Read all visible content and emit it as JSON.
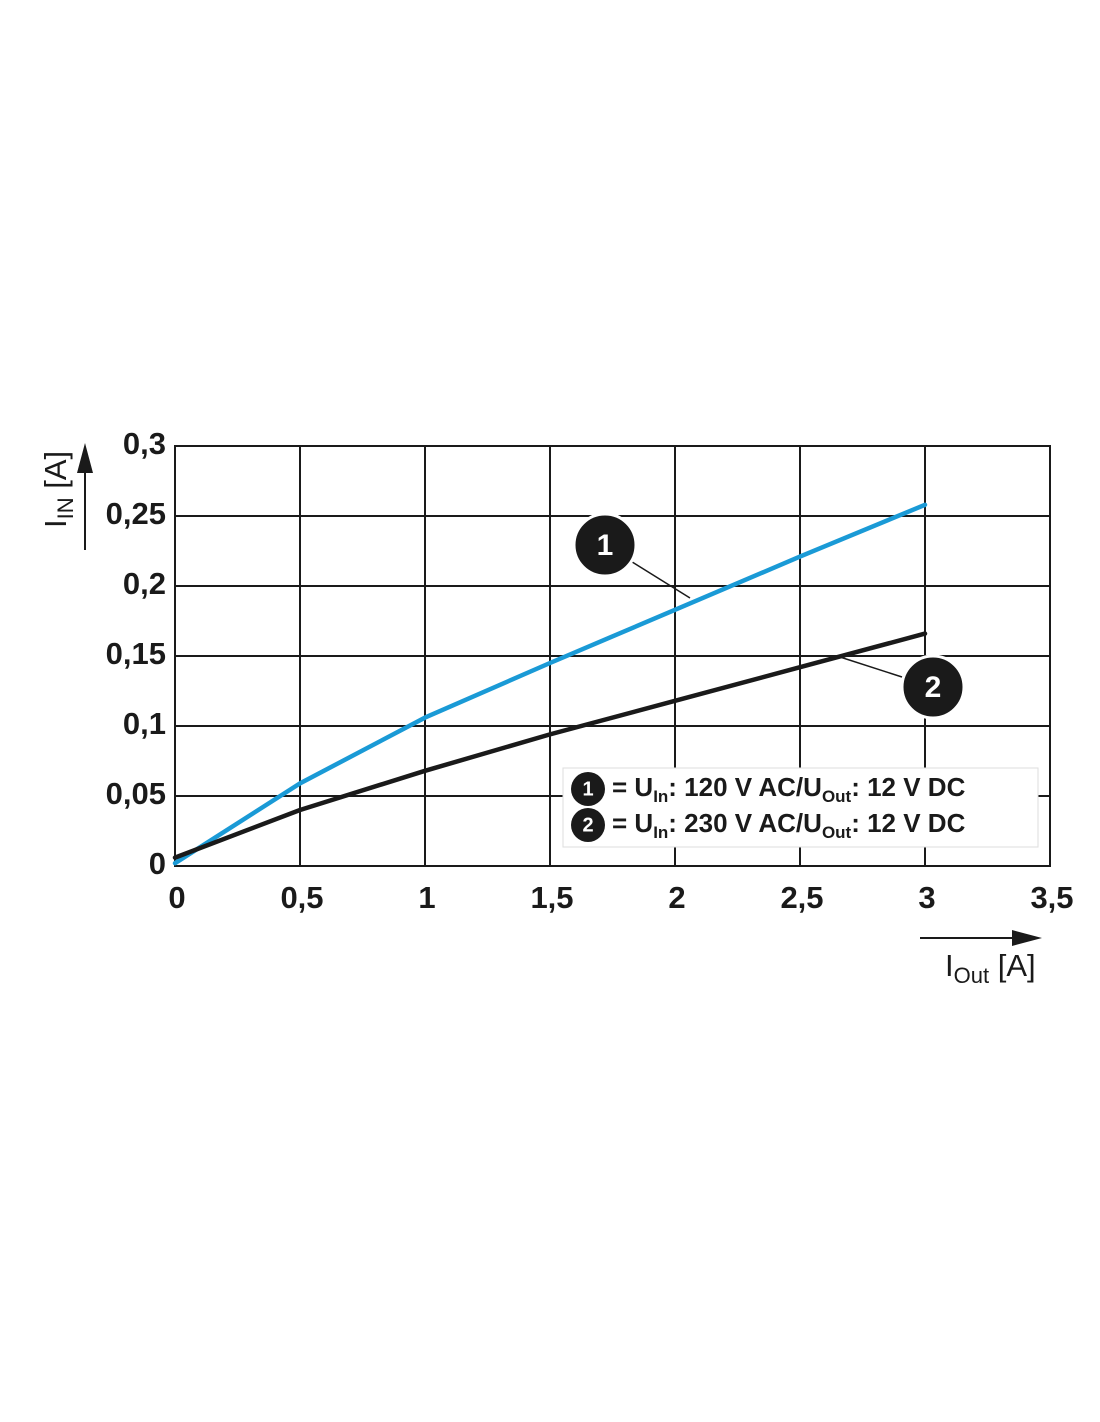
{
  "chart_data": {
    "type": "line",
    "xlabel": [
      "I",
      "Out",
      " [A]"
    ],
    "ylabel": [
      "I",
      "IN",
      " [A]"
    ],
    "x": [
      0,
      0.5,
      1,
      1.5,
      2,
      2.5,
      3
    ],
    "xlim": [
      0,
      3.5
    ],
    "ylim": [
      0,
      0.3
    ],
    "xticks": [
      0,
      {
        "value": 0.5,
        "label": "0,5"
      },
      1,
      {
        "value": 1.5,
        "label": "1,5"
      },
      2,
      {
        "value": 2.5,
        "label": "2,5"
      },
      3,
      {
        "value": 3.5,
        "label": "3,5"
      }
    ],
    "yticks": [
      0,
      {
        "value": 0.05,
        "label": "0,05"
      },
      {
        "value": 0.1,
        "label": "0,1"
      },
      {
        "value": 0.15,
        "label": "0,15"
      },
      {
        "value": 0.2,
        "label": "0,2"
      },
      {
        "value": 0.25,
        "label": "0,25"
      },
      {
        "value": 0.3,
        "label": "0,3"
      }
    ],
    "grid": true,
    "series": [
      {
        "marker": "1",
        "name": [
          "= U",
          "In",
          ": 120 V AC/U",
          "Out",
          ": 12 V DC"
        ],
        "color": "#1a9ad6",
        "values": [
          0.002,
          0.059,
          0.106,
          0.145,
          0.183,
          0.221,
          0.258
        ]
      },
      {
        "marker": "2",
        "name": [
          "= U",
          "In",
          ": 230 V AC/U",
          "Out",
          ": 12 V DC"
        ],
        "color": "#1a1a1a",
        "values": [
          0.006,
          0.04,
          0.068,
          0.094,
          0.118,
          0.142,
          0.166
        ]
      }
    ]
  }
}
